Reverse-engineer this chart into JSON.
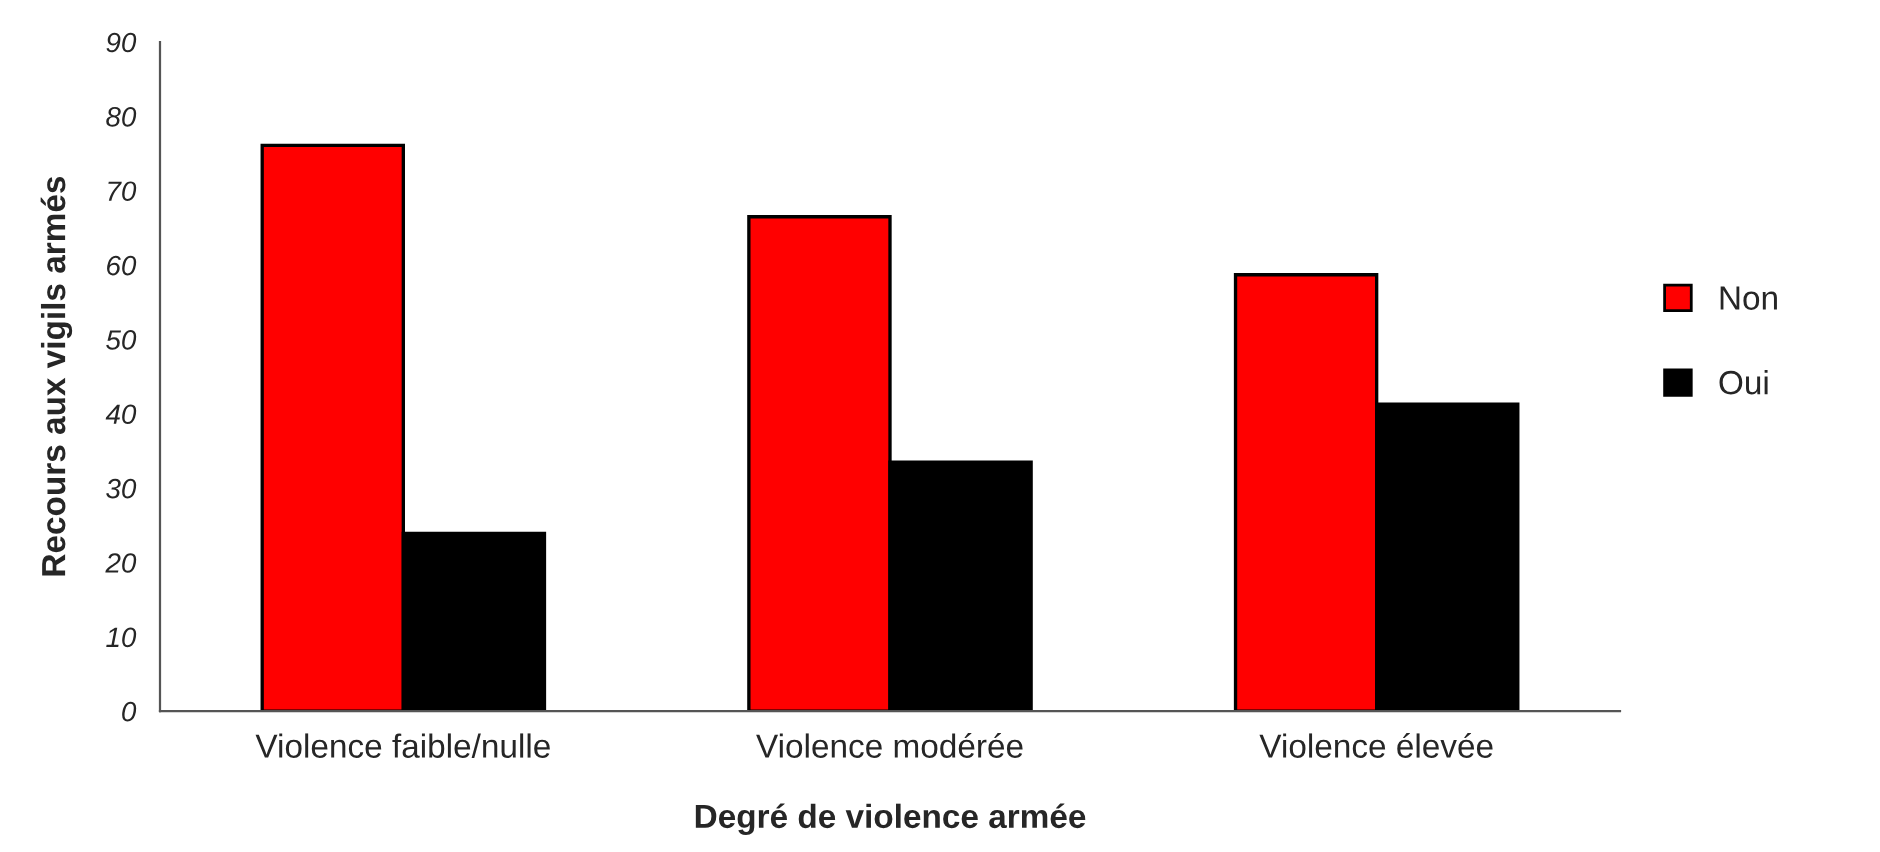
{
  "chart_data": {
    "type": "bar",
    "xlabel": "Degré de violence armée",
    "ylabel": "Recours aux vigils armés",
    "categories": [
      "Violence faible/nulle",
      "Violence modérée",
      "Violence élevée"
    ],
    "series": [
      {
        "name": "Non",
        "color": "#ff0000",
        "values": [
          76.1,
          66.5,
          58.7
        ]
      },
      {
        "name": "Oui",
        "color": "#000000",
        "values": [
          23.9,
          33.5,
          41.3
        ]
      }
    ],
    "ylim": [
      0,
      90
    ],
    "yticks": [
      0,
      10,
      20,
      30,
      40,
      50,
      60,
      70,
      80,
      90
    ],
    "grid": false,
    "legend": "right"
  }
}
